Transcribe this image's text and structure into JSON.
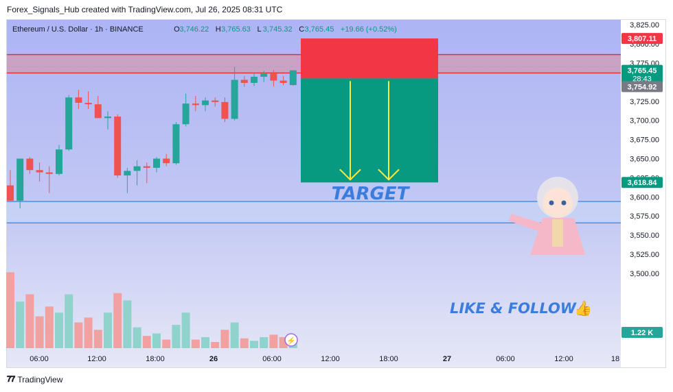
{
  "header": {
    "attribution": "Forex_Signals_Hub created with TradingView.com, Jul 26, 2025 08:31 UTC"
  },
  "legend": {
    "symbol": "Ethereum / U.S. Dollar · 1h · BINANCE",
    "o_label": "O",
    "o_value": "3,746.22",
    "h_label": "H",
    "h_value": "3,765.63",
    "l_label": "L",
    "l_value": "3,745.32",
    "c_label": "C",
    "c_value": "3,765.45",
    "change": "+19.66 (+0.52%)"
  },
  "colors": {
    "up": "#26a69a",
    "down": "#ef5350",
    "volume_up": "#8fd3cc",
    "volume_down": "#f1a2a0",
    "stop_box": "#f23645",
    "target_box": "#089981",
    "annotation_text": "#3b7ddd",
    "arrow": "#ffeb3b",
    "resistance_line": "#e0303a",
    "support_line": "#4a90e2"
  },
  "chart_data": {
    "type": "candlestick",
    "symbol": "ETHUSD",
    "timeframe": "1h",
    "ylim": [
      3500,
      3835
    ],
    "y_ticks": [
      3500,
      3525,
      3550,
      3575,
      3600,
      3625,
      3650,
      3675,
      3700,
      3725,
      3750,
      3775,
      3800,
      3825
    ],
    "x_ticks": [
      "06:00",
      "12:00",
      "18:00",
      "26",
      "06:00",
      "12:00",
      "18:00",
      "27",
      "06:00",
      "12:00",
      "18"
    ],
    "candles": [
      {
        "o": 3615,
        "h": 3635,
        "l": 3595,
        "c": 3595
      },
      {
        "o": 3595,
        "h": 3650,
        "l": 3585,
        "c": 3650
      },
      {
        "o": 3650,
        "h": 3652,
        "l": 3630,
        "c": 3635
      },
      {
        "o": 3635,
        "h": 3645,
        "l": 3620,
        "c": 3632
      },
      {
        "o": 3632,
        "h": 3640,
        "l": 3605,
        "c": 3630
      },
      {
        "o": 3630,
        "h": 3668,
        "l": 3628,
        "c": 3662
      },
      {
        "o": 3662,
        "h": 3733,
        "l": 3660,
        "c": 3730
      },
      {
        "o": 3730,
        "h": 3740,
        "l": 3715,
        "c": 3723
      },
      {
        "o": 3723,
        "h": 3738,
        "l": 3715,
        "c": 3721
      },
      {
        "o": 3721,
        "h": 3732,
        "l": 3706,
        "c": 3703
      },
      {
        "o": 3703,
        "h": 3712,
        "l": 3688,
        "c": 3705
      },
      {
        "o": 3705,
        "h": 3708,
        "l": 3625,
        "c": 3628
      },
      {
        "o": 3628,
        "h": 3638,
        "l": 3605,
        "c": 3634
      },
      {
        "o": 3634,
        "h": 3648,
        "l": 3615,
        "c": 3640
      },
      {
        "o": 3640,
        "h": 3645,
        "l": 3618,
        "c": 3638
      },
      {
        "o": 3638,
        "h": 3652,
        "l": 3632,
        "c": 3650
      },
      {
        "o": 3650,
        "h": 3656,
        "l": 3640,
        "c": 3644
      },
      {
        "o": 3644,
        "h": 3698,
        "l": 3642,
        "c": 3695
      },
      {
        "o": 3695,
        "h": 3735,
        "l": 3692,
        "c": 3722
      },
      {
        "o": 3722,
        "h": 3732,
        "l": 3712,
        "c": 3720
      },
      {
        "o": 3720,
        "h": 3730,
        "l": 3712,
        "c": 3726
      },
      {
        "o": 3726,
        "h": 3730,
        "l": 3718,
        "c": 3724
      },
      {
        "o": 3724,
        "h": 3730,
        "l": 3698,
        "c": 3702
      },
      {
        "o": 3702,
        "h": 3770,
        "l": 3700,
        "c": 3753
      },
      {
        "o": 3753,
        "h": 3758,
        "l": 3744,
        "c": 3749
      },
      {
        "o": 3749,
        "h": 3762,
        "l": 3745,
        "c": 3757
      },
      {
        "o": 3757,
        "h": 3765,
        "l": 3750,
        "c": 3761
      },
      {
        "o": 3761,
        "h": 3766,
        "l": 3744,
        "c": 3752
      },
      {
        "o": 3752,
        "h": 3758,
        "l": 3746,
        "c": 3749
      },
      {
        "o": 3746.22,
        "h": 3765.63,
        "l": 3745.32,
        "c": 3765.45
      }
    ],
    "volume": [
      62,
      38,
      44,
      26,
      34,
      29,
      44,
      21,
      25,
      15,
      29,
      45,
      39,
      17,
      10,
      12,
      7,
      19,
      29,
      7,
      9,
      5,
      15,
      21,
      8,
      6,
      9,
      11,
      9,
      10
    ],
    "volume_max": 70,
    "resistance_zone": {
      "top": 3786,
      "bottom": 3762
    },
    "support_zone": {
      "top": 3594,
      "bottom": 3566
    },
    "position": {
      "type": "short",
      "stop": 3807.11,
      "entry": 3754.92,
      "target": 3618.84
    },
    "price_labels": {
      "stop": "3,807.11",
      "current": "3,765.45",
      "countdown": "28:43",
      "entry": "3,754.92",
      "target": "3,618.84",
      "volume": "1.22 K"
    }
  },
  "annotations": {
    "target_text": "TARGET",
    "like_text": "LIKE & FOLLOW",
    "like_emoji": "👍"
  },
  "footer": {
    "brand": "TradingView"
  }
}
